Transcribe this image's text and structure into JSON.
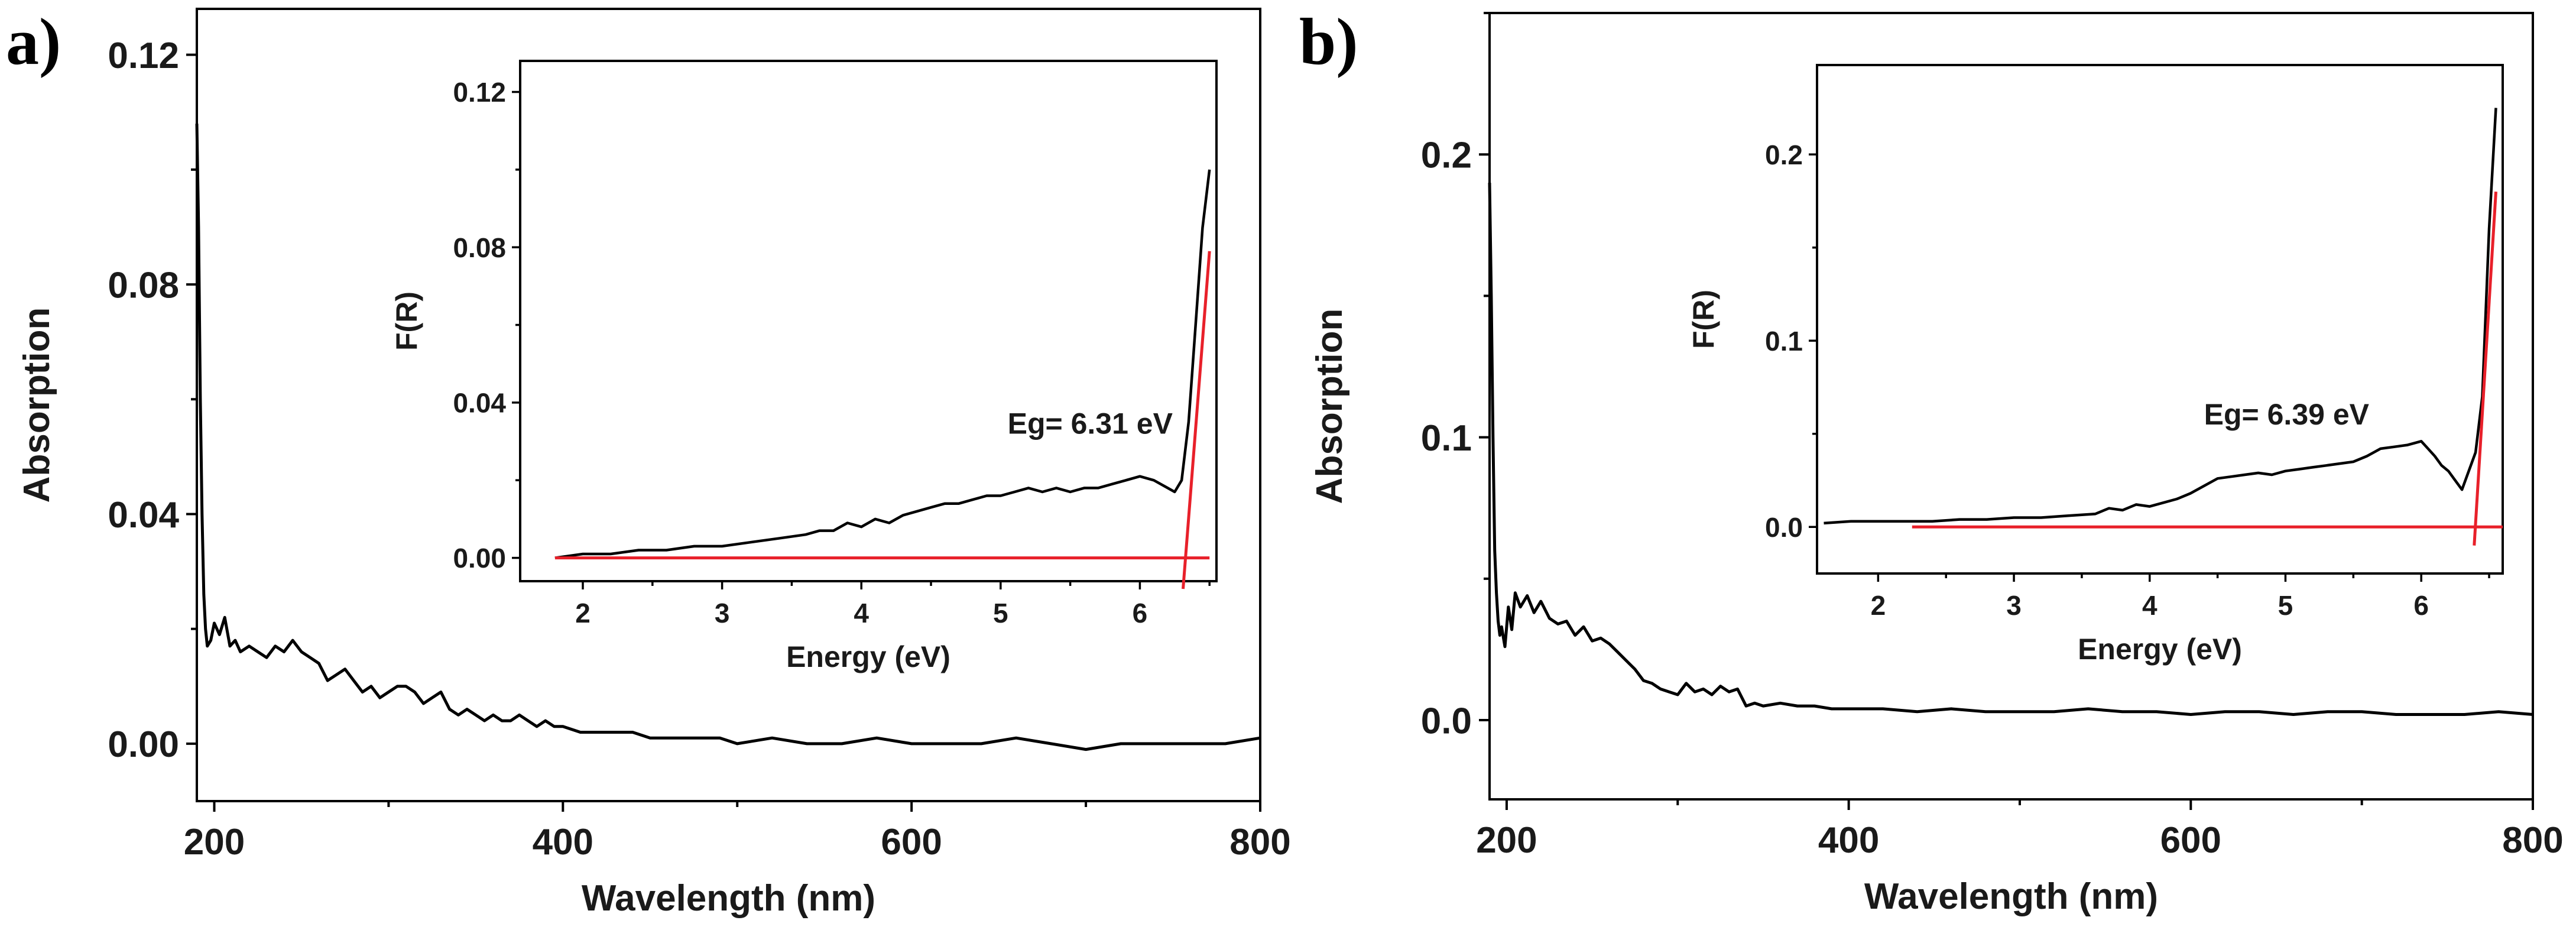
{
  "chart_data": [
    {
      "panel_label": "a)",
      "type": "line",
      "xlabel": "Wavelength (nm)",
      "ylabel": "Absorption",
      "xlim": [
        190,
        800
      ],
      "ylim": [
        -0.01,
        0.128
      ],
      "xticks": [
        200,
        400,
        600,
        800
      ],
      "xtick_labels": [
        "200",
        "400",
        "600",
        "800"
      ],
      "yticks": [
        0.0,
        0.04,
        0.08,
        0.12
      ],
      "ytick_labels": [
        "0.00",
        "0.04",
        "0.08",
        "0.12"
      ],
      "series": [
        {
          "name": "absorption",
          "color": "#000000",
          "x": [
            190,
            191,
            192,
            193,
            194,
            195,
            196,
            198,
            200,
            203,
            206,
            209,
            212,
            215,
            220,
            225,
            230,
            235,
            240,
            245,
            250,
            255,
            260,
            265,
            270,
            275,
            280,
            285,
            290,
            295,
            300,
            305,
            310,
            315,
            320,
            325,
            330,
            335,
            340,
            345,
            350,
            355,
            360,
            365,
            370,
            375,
            380,
            385,
            390,
            395,
            400,
            410,
            420,
            430,
            440,
            450,
            460,
            470,
            480,
            490,
            500,
            520,
            540,
            560,
            580,
            600,
            620,
            640,
            660,
            680,
            700,
            720,
            740,
            760,
            780,
            800
          ],
          "y": [
            0.108,
            0.09,
            0.06,
            0.04,
            0.026,
            0.02,
            0.017,
            0.018,
            0.021,
            0.019,
            0.022,
            0.017,
            0.018,
            0.016,
            0.017,
            0.016,
            0.015,
            0.017,
            0.016,
            0.018,
            0.016,
            0.015,
            0.014,
            0.011,
            0.012,
            0.013,
            0.011,
            0.009,
            0.01,
            0.008,
            0.009,
            0.01,
            0.01,
            0.009,
            0.007,
            0.008,
            0.009,
            0.006,
            0.005,
            0.006,
            0.005,
            0.004,
            0.005,
            0.004,
            0.004,
            0.005,
            0.004,
            0.003,
            0.004,
            0.003,
            0.003,
            0.002,
            0.002,
            0.002,
            0.002,
            0.001,
            0.001,
            0.001,
            0.001,
            0.001,
            0.0,
            0.001,
            0.0,
            0.0,
            0.001,
            0.0,
            0.0,
            0.0,
            0.001,
            0.0,
            -0.001,
            0.0,
            0.0,
            0.0,
            0.0,
            0.001
          ]
        }
      ],
      "inset": {
        "type": "line",
        "xlabel": "Energy (eV)",
        "ylabel": "F(R)",
        "xlim": [
          1.55,
          6.55
        ],
        "ylim": [
          -0.006,
          0.128
        ],
        "xticks": [
          2,
          3,
          4,
          5,
          6
        ],
        "xtick_labels": [
          "2",
          "3",
          "4",
          "5",
          "6"
        ],
        "yticks": [
          0.0,
          0.04,
          0.08,
          0.12
        ],
        "ytick_labels": [
          "0.00",
          "0.04",
          "0.08",
          "0.12"
        ],
        "annotation": "Eg= 6.31 eV",
        "annotation_at": [
          5.05,
          0.032
        ],
        "series": [
          {
            "name": "F(R)",
            "color": "#000000",
            "x": [
              1.8,
              2.0,
              2.2,
              2.4,
              2.6,
              2.8,
              3.0,
              3.2,
              3.4,
              3.6,
              3.7,
              3.8,
              3.9,
              4.0,
              4.1,
              4.2,
              4.3,
              4.4,
              4.5,
              4.6,
              4.7,
              4.8,
              4.9,
              5.0,
              5.1,
              5.2,
              5.3,
              5.4,
              5.5,
              5.6,
              5.7,
              5.8,
              5.9,
              6.0,
              6.1,
              6.2,
              6.25,
              6.3,
              6.35,
              6.4,
              6.45,
              6.5
            ],
            "y": [
              0.0,
              0.001,
              0.001,
              0.002,
              0.002,
              0.003,
              0.003,
              0.004,
              0.005,
              0.006,
              0.007,
              0.007,
              0.009,
              0.008,
              0.01,
              0.009,
              0.011,
              0.012,
              0.013,
              0.014,
              0.014,
              0.015,
              0.016,
              0.016,
              0.017,
              0.018,
              0.017,
              0.018,
              0.017,
              0.018,
              0.018,
              0.019,
              0.02,
              0.021,
              0.02,
              0.018,
              0.017,
              0.02,
              0.035,
              0.06,
              0.085,
              0.1
            ]
          },
          {
            "name": "baseline",
            "color": "#e8202a",
            "x": [
              1.8,
              6.5
            ],
            "y": [
              0.0,
              0.0
            ]
          },
          {
            "name": "tangent",
            "color": "#e8202a",
            "x": [
              6.31,
              6.5
            ],
            "y": [
              -0.008,
              0.079
            ]
          }
        ]
      }
    },
    {
      "panel_label": "b)",
      "type": "line",
      "xlabel": "Wavelength (nm)",
      "ylabel": "Absorption",
      "xlim": [
        190,
        800
      ],
      "ylim": [
        -0.028,
        0.25
      ],
      "xticks": [
        200,
        400,
        600,
        800
      ],
      "xtick_labels": [
        "200",
        "400",
        "600",
        "800"
      ],
      "yticks": [
        0.0,
        0.1,
        0.2
      ],
      "ytick_labels": [
        "0.0",
        "0.1",
        "0.2"
      ],
      "series": [
        {
          "name": "absorption",
          "color": "#000000",
          "x": [
            190,
            191,
            192,
            193,
            194,
            195,
            196,
            197,
            199,
            201,
            203,
            205,
            208,
            212,
            216,
            220,
            225,
            230,
            235,
            240,
            245,
            250,
            255,
            260,
            265,
            270,
            275,
            280,
            285,
            290,
            295,
            300,
            305,
            310,
            315,
            320,
            325,
            330,
            335,
            340,
            345,
            350,
            360,
            370,
            380,
            390,
            400,
            420,
            440,
            460,
            480,
            500,
            520,
            540,
            560,
            580,
            600,
            620,
            640,
            660,
            680,
            700,
            720,
            740,
            760,
            780,
            800
          ],
          "y": [
            0.19,
            0.15,
            0.1,
            0.06,
            0.045,
            0.035,
            0.03,
            0.033,
            0.026,
            0.04,
            0.032,
            0.045,
            0.04,
            0.044,
            0.038,
            0.042,
            0.036,
            0.034,
            0.035,
            0.03,
            0.033,
            0.028,
            0.029,
            0.027,
            0.024,
            0.021,
            0.018,
            0.014,
            0.013,
            0.011,
            0.01,
            0.009,
            0.013,
            0.01,
            0.011,
            0.009,
            0.012,
            0.01,
            0.011,
            0.005,
            0.006,
            0.005,
            0.006,
            0.005,
            0.005,
            0.004,
            0.004,
            0.004,
            0.003,
            0.004,
            0.003,
            0.003,
            0.003,
            0.004,
            0.003,
            0.003,
            0.002,
            0.003,
            0.003,
            0.002,
            0.003,
            0.003,
            0.002,
            0.002,
            0.002,
            0.003,
            0.002
          ]
        }
      ],
      "inset": {
        "type": "line",
        "xlabel": "Energy (eV)",
        "ylabel": "F(R)",
        "xlim": [
          1.55,
          6.6
        ],
        "ylim": [
          -0.025,
          0.248
        ],
        "xticks": [
          2,
          3,
          4,
          5,
          6
        ],
        "xtick_labels": [
          "2",
          "3",
          "4",
          "5",
          "6"
        ],
        "yticks": [
          0.0,
          0.1,
          0.2
        ],
        "ytick_labels": [
          "0.0",
          "0.1",
          "0.2"
        ],
        "annotation": "Eg= 6.39 eV",
        "annotation_at": [
          4.4,
          0.055
        ],
        "series": [
          {
            "name": "F(R)",
            "color": "#000000",
            "x": [
              1.6,
              1.8,
              2.0,
              2.2,
              2.4,
              2.6,
              2.8,
              3.0,
              3.2,
              3.4,
              3.6,
              3.7,
              3.8,
              3.9,
              4.0,
              4.1,
              4.2,
              4.3,
              4.4,
              4.5,
              4.6,
              4.7,
              4.8,
              4.9,
              5.0,
              5.1,
              5.2,
              5.3,
              5.4,
              5.5,
              5.6,
              5.7,
              5.8,
              5.9,
              6.0,
              6.05,
              6.1,
              6.15,
              6.2,
              6.25,
              6.3,
              6.35,
              6.4,
              6.45,
              6.5,
              6.55
            ],
            "y": [
              0.002,
              0.003,
              0.003,
              0.003,
              0.003,
              0.004,
              0.004,
              0.005,
              0.005,
              0.006,
              0.007,
              0.01,
              0.009,
              0.012,
              0.011,
              0.013,
              0.015,
              0.018,
              0.022,
              0.026,
              0.027,
              0.028,
              0.029,
              0.028,
              0.03,
              0.031,
              0.032,
              0.033,
              0.034,
              0.035,
              0.038,
              0.042,
              0.043,
              0.044,
              0.046,
              0.042,
              0.038,
              0.033,
              0.03,
              0.025,
              0.02,
              0.03,
              0.04,
              0.07,
              0.16,
              0.225
            ]
          },
          {
            "name": "baseline",
            "color": "#e8202a",
            "x": [
              2.25,
              6.6
            ],
            "y": [
              0.0,
              0.0
            ]
          },
          {
            "name": "tangent",
            "color": "#e8202a",
            "x": [
              6.39,
              6.55
            ],
            "y": [
              -0.01,
              0.18
            ]
          }
        ]
      }
    }
  ]
}
